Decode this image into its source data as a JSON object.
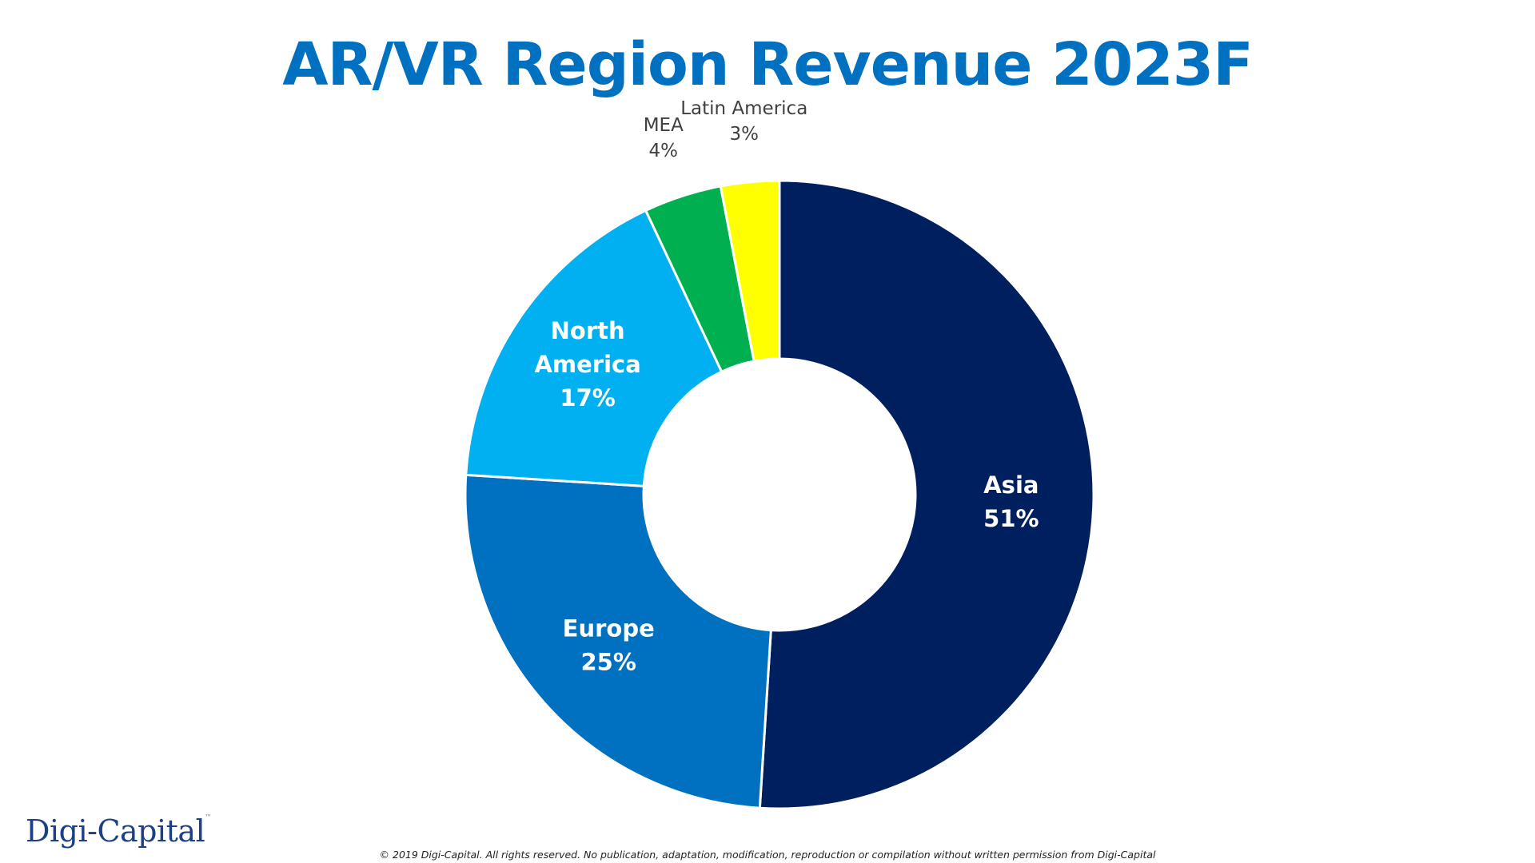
{
  "page": {
    "title": "AR/VR Region Revenue 2023F",
    "logo": "Digi-Capital",
    "copyright": "© 2019 Digi-Capital. All rights reserved. No publication, adaptation, modification, reproduction or compilation without written permission from Digi-Capital"
  },
  "chart_data": {
    "type": "pie",
    "donut": true,
    "title": "AR/VR Region Revenue 2023F",
    "start_angle_deg": 0,
    "direction": "clockwise",
    "slices": [
      {
        "label": "Asia",
        "value": 51,
        "display": "51%",
        "color": "#001f5f",
        "label_position": "inside"
      },
      {
        "label": "Europe",
        "value": 25,
        "display": "25%",
        "color": "#0070c0",
        "label_position": "inside"
      },
      {
        "label": "North America",
        "value": 17,
        "display": "17%",
        "color": "#00b0f0",
        "label_position": "inside"
      },
      {
        "label": "MEA",
        "value": 4,
        "display": "4%",
        "color": "#00b050",
        "label_position": "outside"
      },
      {
        "label": "Latin America",
        "value": 3,
        "display": "3%",
        "color": "#ffff00",
        "label_position": "outside"
      }
    ]
  }
}
